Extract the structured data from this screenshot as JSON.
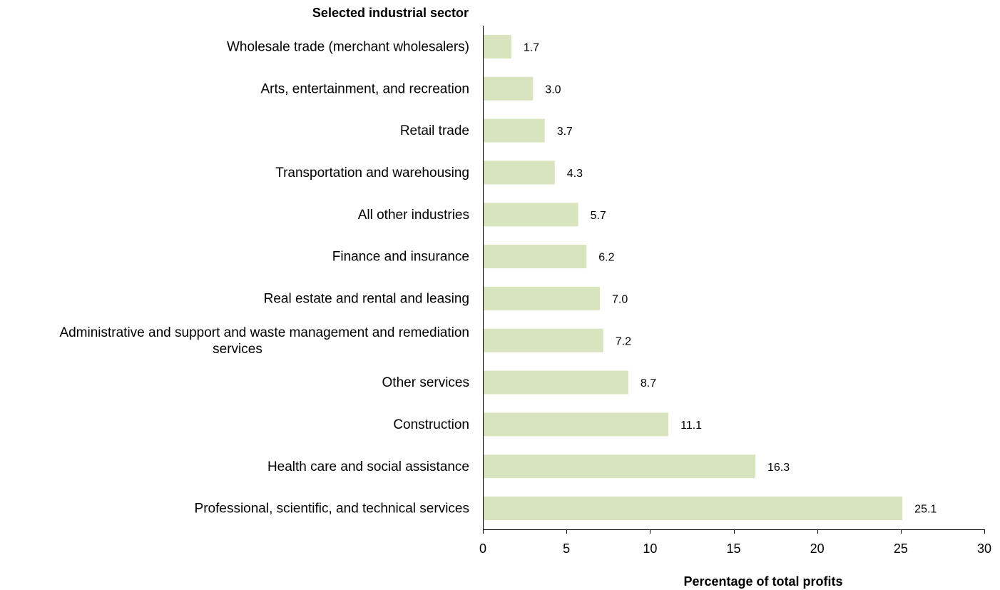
{
  "chart_data": {
    "type": "bar",
    "orientation": "horizontal",
    "ylabel": "Selected industrial sector",
    "xlabel": "Percentage  of total profits",
    "categories": [
      [
        "Wholesale trade (merchant wholesalers)"
      ],
      [
        "Arts, entertainment, and recreation"
      ],
      [
        "Retail trade"
      ],
      [
        "Transportation and warehousing"
      ],
      [
        "All other industries"
      ],
      [
        "Finance and insurance"
      ],
      [
        "Real estate and rental and leasing"
      ],
      [
        "Administrative and support and waste management and remediation",
        "services"
      ],
      [
        "Other services"
      ],
      [
        "Construction"
      ],
      [
        "Health care and social assistance"
      ],
      [
        "Professional, scientific, and technical services"
      ]
    ],
    "values": [
      1.7,
      3.0,
      3.7,
      4.3,
      5.7,
      6.2,
      7.0,
      7.2,
      8.7,
      11.1,
      16.3,
      25.1
    ],
    "value_labels": [
      "1.7",
      "3.0",
      "3.7",
      "4.3",
      "5.7",
      "6.2",
      "7.0",
      "7.2",
      "8.7",
      "11.1",
      "16.3",
      "25.1"
    ],
    "xlim": [
      0,
      30
    ],
    "xticks": [
      "0",
      "5",
      "10",
      "15",
      "20",
      "25",
      "30"
    ],
    "grid": false,
    "legend": "none",
    "bar_color": "#d7e4bd"
  }
}
